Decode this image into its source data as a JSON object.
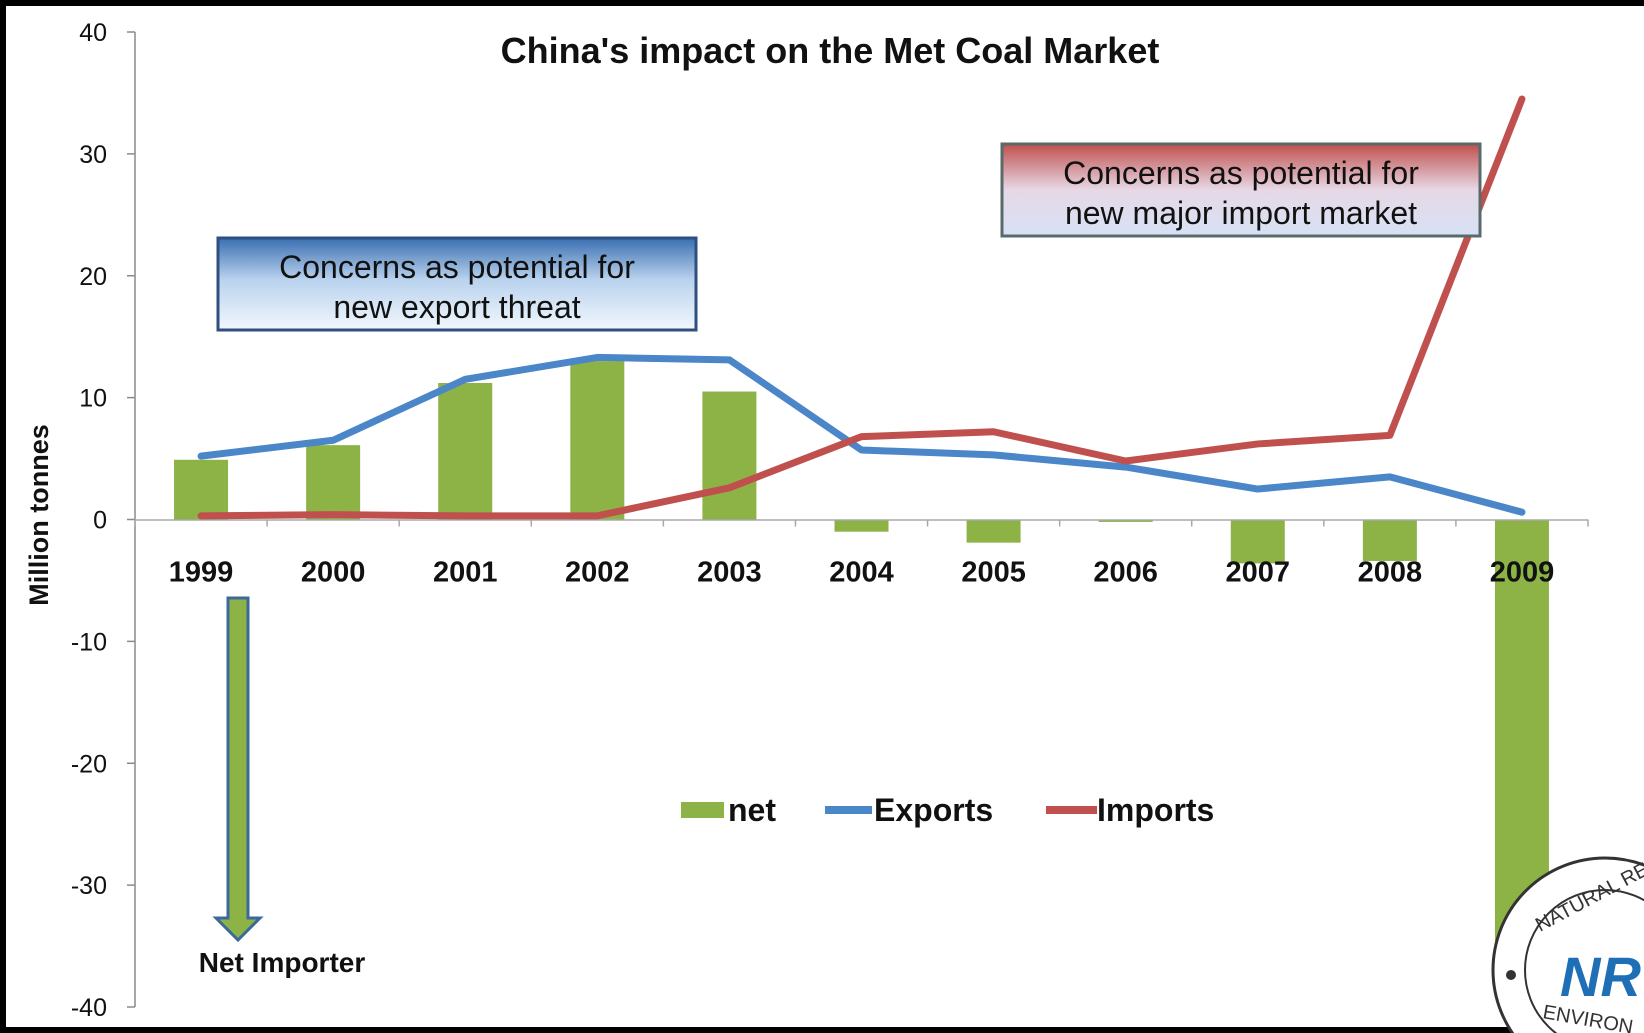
{
  "chart_data": {
    "type": "bar",
    "title": "China's impact on the Met Coal Market",
    "ylabel": "Million tonnes",
    "xlabel": "",
    "ylim": [
      -40,
      40
    ],
    "yticks": [
      40,
      30,
      20,
      10,
      0,
      -10,
      -20,
      -30,
      -40
    ],
    "categories": [
      "1999",
      "2000",
      "2001",
      "2002",
      "2003",
      "2004",
      "2005",
      "2006",
      "2007",
      "2008",
      "2009"
    ],
    "series": [
      {
        "name": "net",
        "kind": "bar",
        "color": "#8db346",
        "values": [
          4.9,
          6.1,
          11.2,
          13.0,
          10.5,
          -1.0,
          -1.9,
          -0.2,
          -3.6,
          -3.4,
          -35.0
        ]
      },
      {
        "name": "Exports",
        "kind": "line",
        "color": "#4a86c8",
        "values": [
          5.2,
          6.5,
          11.5,
          13.3,
          13.1,
          5.7,
          5.3,
          4.3,
          2.5,
          3.5,
          0.6
        ]
      },
      {
        "name": "Imports",
        "kind": "line",
        "color": "#c0504d",
        "values": [
          0.3,
          0.4,
          0.3,
          0.3,
          2.6,
          6.8,
          7.2,
          4.8,
          6.2,
          6.9,
          34.5
        ]
      }
    ],
    "legend_position": "center",
    "grid": false
  },
  "annotations": {
    "export_callout": [
      "Concerns as potential for",
      "new export threat"
    ],
    "import_callout": [
      "Concerns as potential for",
      "new major import market"
    ],
    "net_importer": "Net Importer"
  },
  "logo": {
    "top_text": "NATURAL RES",
    "bottom_text": "ENVIRON",
    "mark": "NR"
  }
}
